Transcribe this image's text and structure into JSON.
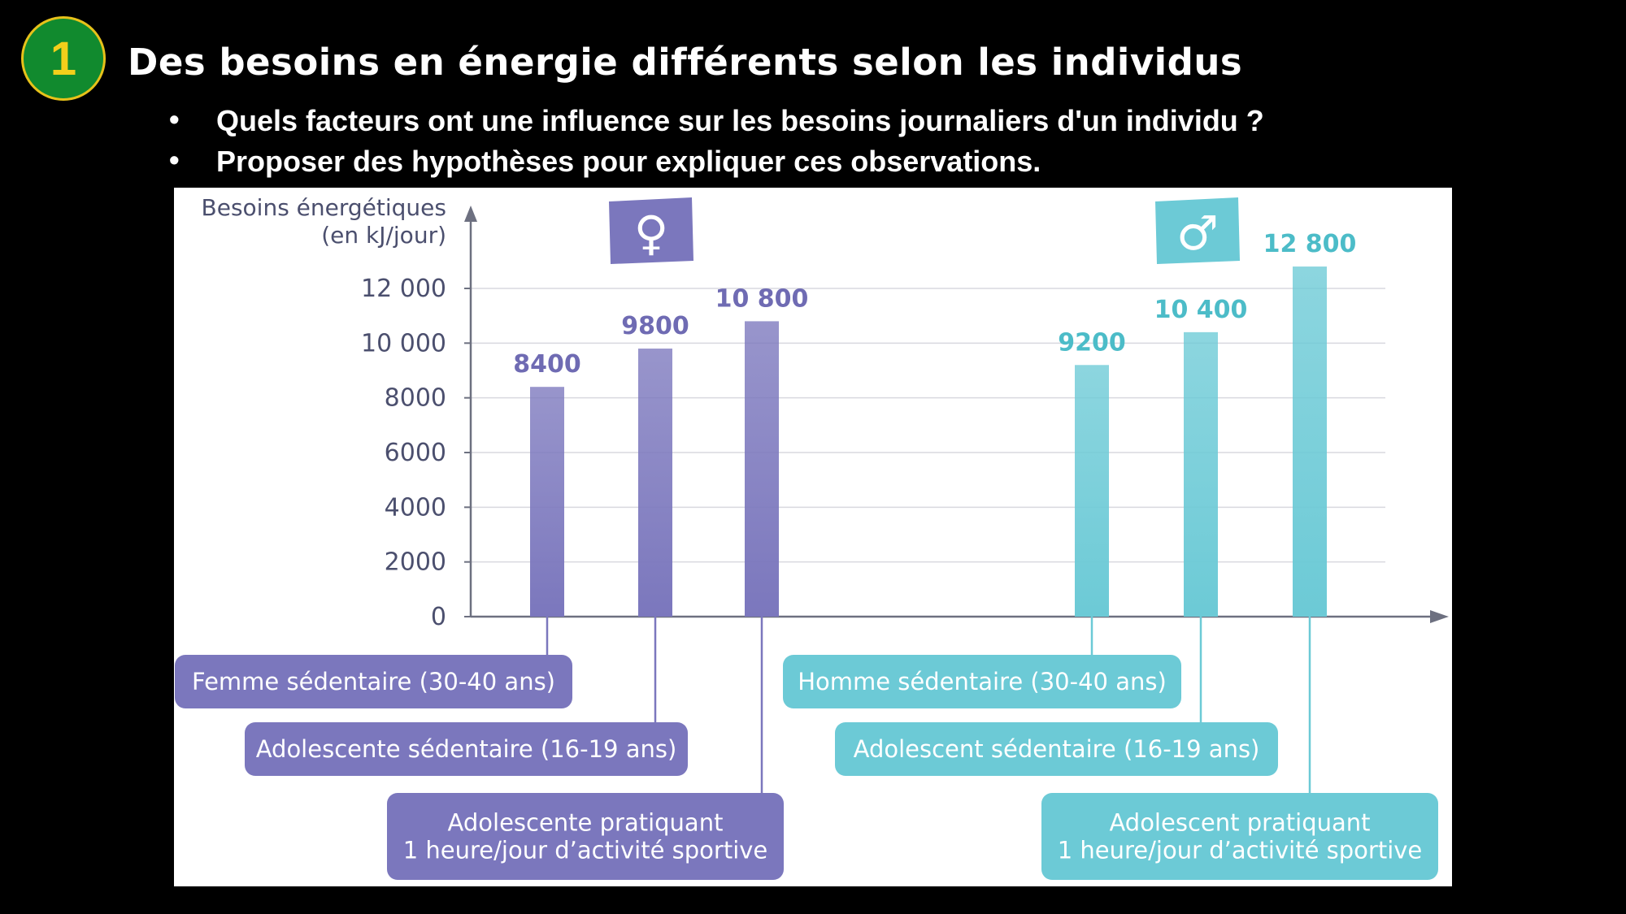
{
  "slide": {
    "number": "1",
    "title": "Des besoins en énergie différents selon les individus",
    "bullets": [
      "Quels facteurs ont une influence sur les besoins journaliers d'un individu ?",
      "Proposer des hypothèses pour expliquer ces observations."
    ]
  },
  "colors": {
    "female": "#7b77bd",
    "female_label": "#6f6bb3",
    "male": "#6ccad6",
    "male_label": "#4cbcc8",
    "badge_green": "#118a2e",
    "badge_yellow": "#f3cf1b"
  },
  "chart_data": {
    "type": "bar",
    "ylabel": "Besoins énergétiques",
    "yunit": "(en kJ/jour)",
    "ylim": [
      0,
      13500
    ],
    "yticks": [
      0,
      2000,
      4000,
      6000,
      8000,
      10000,
      12000
    ],
    "ytick_labels": [
      "0",
      "2000",
      "4000",
      "6000",
      "8000",
      "10 000",
      "12 000"
    ],
    "grid": true,
    "groups": [
      {
        "symbol": "♀",
        "icon": "female-symbol-icon",
        "bars": [
          {
            "category": "Femme sédentaire (30-40 ans)",
            "value": 8400,
            "label": "8400"
          },
          {
            "category": "Adolescente sédentaire (16-19 ans)",
            "value": 9800,
            "label": "9800"
          },
          {
            "category": "Adolescente pratiquant\n1 heure/jour d’activité sportive",
            "value": 10800,
            "label": "10 800"
          }
        ]
      },
      {
        "symbol": "♂",
        "icon": "male-symbol-icon",
        "bars": [
          {
            "category": "Homme sédentaire (30-40 ans)",
            "value": 9200,
            "label": "9200"
          },
          {
            "category": "Adolescent sédentaire (16-19 ans)",
            "value": 10400,
            "label": "10 400"
          },
          {
            "category": "Adolescent pratiquant\n1 heure/jour d’activité sportive",
            "value": 12800,
            "label": "12 800"
          }
        ]
      }
    ]
  }
}
